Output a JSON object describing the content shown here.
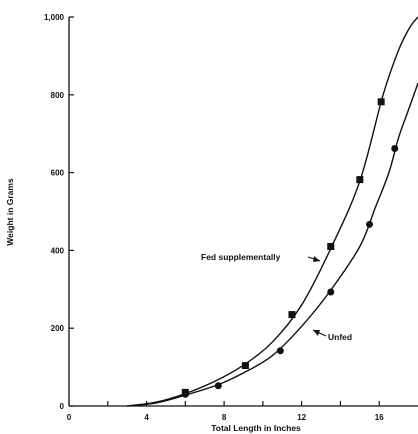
{
  "chart_data": {
    "type": "line",
    "title": "",
    "xlabel": "Total Length in Inches",
    "ylabel": "Weight in Grams",
    "xlim": [
      0,
      18
    ],
    "ylim": [
      0,
      1000
    ],
    "x_ticks": [
      0,
      2,
      4,
      6,
      8,
      10,
      12,
      14,
      16
    ],
    "x_tick_labels": [
      "0",
      "",
      "4",
      "",
      "8",
      "",
      "12",
      "",
      "16"
    ],
    "y_ticks": [
      0,
      200,
      400,
      600,
      800,
      1000
    ],
    "y_tick_labels": [
      "0",
      "200",
      "400",
      "600",
      "800",
      "1,000"
    ],
    "grid": false,
    "series": [
      {
        "name": "Fed supplementally",
        "marker": "square",
        "points": [
          [
            6.0,
            35
          ],
          [
            9.1,
            104
          ],
          [
            11.5,
            235
          ],
          [
            13.5,
            410
          ],
          [
            15.0,
            582
          ],
          [
            16.1,
            782
          ]
        ],
        "curve": [
          [
            3.0,
            0
          ],
          [
            4.5,
            10
          ],
          [
            6.0,
            32
          ],
          [
            7.5,
            63
          ],
          [
            9.0,
            105
          ],
          [
            10.5,
            165
          ],
          [
            12.0,
            260
          ],
          [
            13.5,
            405
          ],
          [
            15.0,
            578
          ],
          [
            16.2,
            800
          ],
          [
            17.0,
            915
          ],
          [
            17.6,
            975
          ],
          [
            18.0,
            1000
          ]
        ]
      },
      {
        "name": "Unfed",
        "marker": "circle",
        "points": [
          [
            6.0,
            30
          ],
          [
            7.7,
            52
          ],
          [
            10.9,
            142
          ],
          [
            13.5,
            293
          ],
          [
            15.5,
            467
          ],
          [
            16.8,
            662
          ]
        ],
        "curve": [
          [
            3.0,
            0
          ],
          [
            4.5,
            8
          ],
          [
            6.0,
            28
          ],
          [
            7.7,
            55
          ],
          [
            9.0,
            85
          ],
          [
            10.5,
            130
          ],
          [
            12.0,
            205
          ],
          [
            13.5,
            298
          ],
          [
            15.0,
            410
          ],
          [
            15.8,
            510
          ],
          [
            16.5,
            600
          ],
          [
            17.0,
            690
          ],
          [
            17.5,
            760
          ],
          [
            18.0,
            830
          ]
        ]
      }
    ],
    "annotations": [
      {
        "text": "Fed supplementally",
        "x": 6.8,
        "y": 380,
        "points_to": "Fed supplementally"
      },
      {
        "text": "Unfed",
        "x": 13.6,
        "y": 175,
        "points_to": "Unfed"
      }
    ]
  }
}
